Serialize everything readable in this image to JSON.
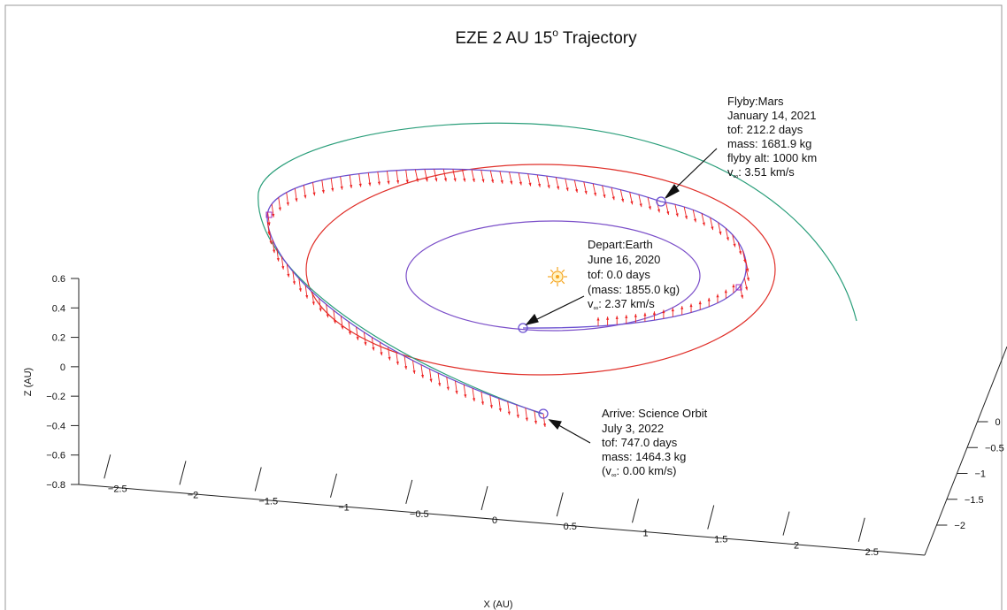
{
  "chart_data": {
    "type": "line",
    "title": "EZE 2 AU 15° Trajectory",
    "title_main": "EZE 2 AU 15",
    "title_sup": "o",
    "title_end": " Trajectory",
    "xlabel": "X (AU)",
    "zlabel": "Z (AU)",
    "x_ticks": [
      "−2.5",
      "−2",
      "−1.5",
      "−1",
      "−0.5",
      "0",
      "0.5",
      "1",
      "1.5",
      "2",
      "2.5"
    ],
    "z_ticks": [
      "0.6",
      "0.4",
      "0.2",
      "0",
      "−0.2",
      "−0.4",
      "−0.6",
      "−0.8"
    ],
    "y_ticks": [
      "0",
      "−0.5",
      "−1",
      "−1.5",
      "−2"
    ],
    "series_colors": {
      "earth_orbit": "#7b4fc9",
      "mars_orbit": "#e0302a",
      "science_orbit": "#2a9e7a",
      "trajectory": "#6a4fd0",
      "thrust_vectors": "#ee2222"
    },
    "sun_color": "#f5a623",
    "annotations": {
      "depart": {
        "lines": [
          "Depart:Earth",
          "June 16, 2020",
          "tof: 0.0 days",
          "(mass: 1855.0 kg)"
        ],
        "vinf_label": "v",
        "vinf_sub": "∞",
        "vinf_value": ": 2.37 km/s"
      },
      "flyby": {
        "lines": [
          "Flyby:Mars",
          "January 14, 2021",
          "tof: 212.2 days",
          "mass: 1681.9 kg",
          "flyby alt: 1000 km"
        ],
        "vinf_label": "v",
        "vinf_sub": "∞",
        "vinf_value": ": 3.51 km/s"
      },
      "arrive": {
        "lines": [
          "Arrive: Science Orbit",
          "July 3, 2022",
          "tof: 747.0 days",
          "mass: 1464.3 kg"
        ],
        "vinf_label": "(v",
        "vinf_sub": "∞",
        "vinf_value": ": 0.00 km/s)"
      }
    },
    "grid": false,
    "legend": "none"
  }
}
